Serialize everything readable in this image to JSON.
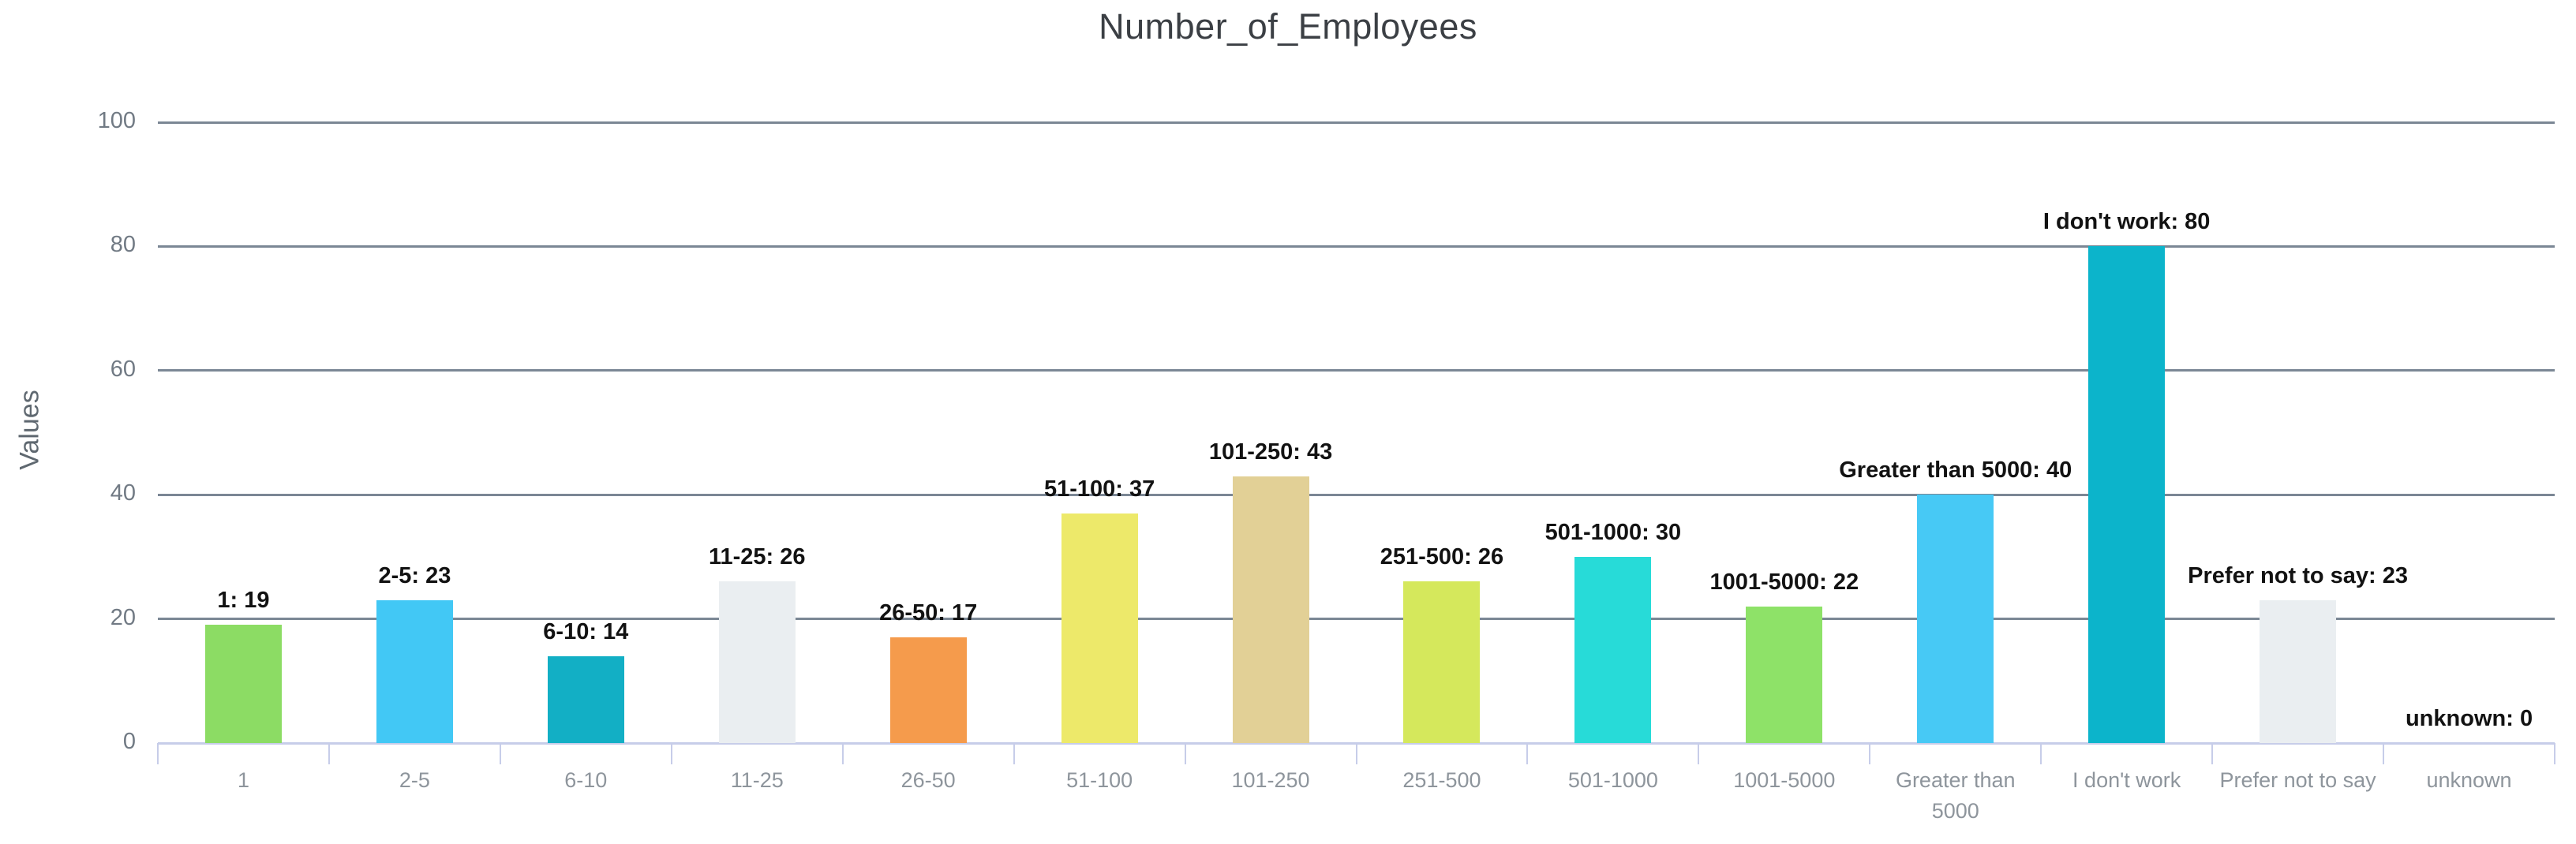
{
  "chart_data": {
    "type": "bar",
    "title": "Number_of_Employees",
    "xlabel": "",
    "ylabel": "Values",
    "ylim": [
      0,
      100
    ],
    "yticks": [
      0,
      20,
      40,
      60,
      80,
      100
    ],
    "grid": true,
    "legend": false,
    "categories": [
      "1",
      "2-5",
      "6-10",
      "11-25",
      "26-50",
      "51-100",
      "101-250",
      "251-500",
      "501-1000",
      "1001-5000",
      "Greater than 5000",
      "I don't work",
      "Prefer not to say",
      "unknown"
    ],
    "values": [
      19,
      23,
      14,
      26,
      17,
      37,
      43,
      26,
      30,
      22,
      40,
      80,
      23,
      0
    ],
    "bar_colors": [
      "#8cdc64",
      "#42c8f5",
      "#12afc5",
      "#eaeef1",
      "#f59b4c",
      "#ede96a",
      "#e2d096",
      "#d5e85c",
      "#27dbd8",
      "#8ee268",
      "#47c9f5",
      "#0cb4cb",
      "#eaeef1",
      "#eaeef1"
    ],
    "annotations": [
      "1: 19",
      "2-5: 23",
      "6-10: 14",
      "11-25: 26",
      "26-50: 17",
      "51-100: 37",
      "101-250: 43",
      "251-500: 26",
      "501-1000: 30",
      "1001-5000: 22",
      "Greater than 5000: 40",
      "I don't work: 80",
      "Prefer not to say: 23",
      "unknown: 0"
    ],
    "colors": {
      "gridline": "#7b8795",
      "axis_line": "#c7cde9",
      "title_text": "#3b3f44",
      "value_label_text": "#121212",
      "y_tick_text": "#717a84",
      "x_tick_text": "#8e959c"
    }
  }
}
